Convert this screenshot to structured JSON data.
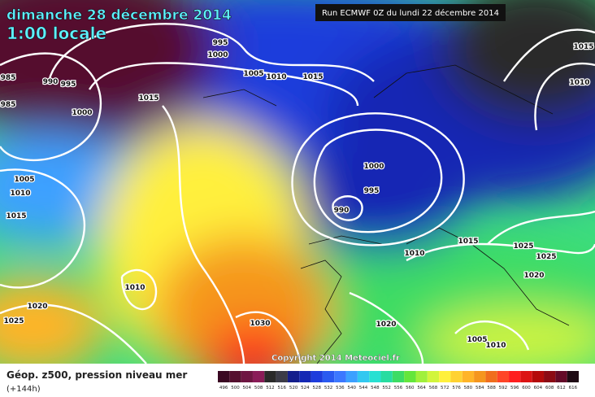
{
  "header": {
    "date": "dimanche 28 décembre 2014",
    "local_time": "1:00 locale",
    "run": "Run ECMWF 0Z du lundi 22 décembre 2014"
  },
  "isobar_labels": [
    "985",
    "985",
    "990",
    "995",
    "995",
    "1000",
    "1000",
    "1005",
    "1010",
    "1015",
    "1015",
    "1005",
    "1010",
    "1015",
    "1000",
    "995",
    "990",
    "1010",
    "1015",
    "1025",
    "1025",
    "1020",
    "1010",
    "1020",
    "1025",
    "1030",
    "1020",
    "1005",
    "1010",
    "1015",
    "1010"
  ],
  "copyright": "Copyright 2014 Meteociel.fr",
  "legend": {
    "title": "Géop. z500, pression niveau mer",
    "lead": "(+144h)",
    "scale": [
      {
        "label": "496",
        "color": "#3a0822"
      },
      {
        "label": "500",
        "color": "#55102f"
      },
      {
        "label": "504",
        "color": "#6e1642"
      },
      {
        "label": "508",
        "color": "#8a1c58"
      },
      {
        "label": "512",
        "color": "#2a2a2a"
      },
      {
        "label": "516",
        "color": "#3c3c48"
      },
      {
        "label": "520",
        "color": "#141e8c"
      },
      {
        "label": "524",
        "color": "#1428b4"
      },
      {
        "label": "528",
        "color": "#1e3cdc"
      },
      {
        "label": "532",
        "color": "#2a5af0"
      },
      {
        "label": "536",
        "color": "#3c78ff"
      },
      {
        "label": "540",
        "color": "#3ca0ff"
      },
      {
        "label": "544",
        "color": "#32c8f0"
      },
      {
        "label": "548",
        "color": "#28e0d2"
      },
      {
        "label": "552",
        "color": "#28dca0"
      },
      {
        "label": "556",
        "color": "#3cdc64"
      },
      {
        "label": "560",
        "color": "#64e63c"
      },
      {
        "label": "564",
        "color": "#a0f03c"
      },
      {
        "label": "568",
        "color": "#d2f53c"
      },
      {
        "label": "572",
        "color": "#fff03c"
      },
      {
        "label": "576",
        "color": "#ffd232"
      },
      {
        "label": "580",
        "color": "#ffb428"
      },
      {
        "label": "584",
        "color": "#f5961e"
      },
      {
        "label": "588",
        "color": "#f06e1e"
      },
      {
        "label": "592",
        "color": "#ff4628"
      },
      {
        "label": "596",
        "color": "#ff1e1e"
      },
      {
        "label": "600",
        "color": "#dc1414"
      },
      {
        "label": "604",
        "color": "#b40a0a"
      },
      {
        "label": "608",
        "color": "#8c0a14"
      },
      {
        "label": "612",
        "color": "#640a28"
      },
      {
        "label": "616",
        "color": "#1e0a14"
      }
    ]
  }
}
